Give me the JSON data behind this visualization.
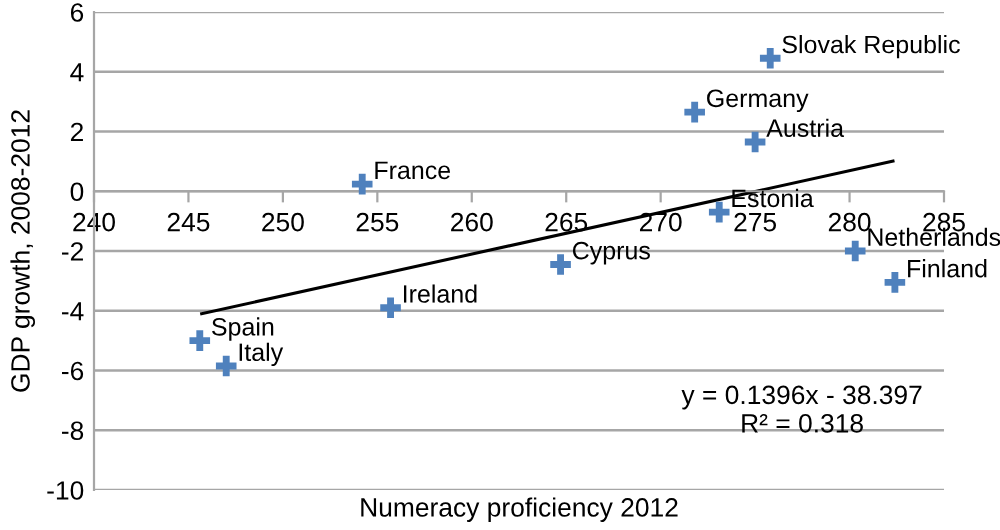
{
  "chart_data": {
    "type": "scatter",
    "xlabel": "Numeracy proficiency 2012",
    "ylabel": "GDP growth, 2008-2012",
    "xlim": [
      240,
      285
    ],
    "xticks": [
      240,
      245,
      250,
      255,
      260,
      265,
      270,
      275,
      280,
      285
    ],
    "ylim": [
      -10,
      6
    ],
    "yticks": [
      -10,
      -8,
      -6,
      -4,
      -2,
      0,
      2,
      4,
      6
    ],
    "grid": "y",
    "legend": false,
    "series": [
      {
        "color": "#4f81bd",
        "marker": "cross",
        "x": [
          245.6,
          247.0,
          254.2,
          255.7,
          264.7,
          271.8,
          275.0,
          273.1,
          275.8,
          280.3,
          282.4
        ],
        "values": [
          -5.0,
          -5.85,
          0.24,
          -3.9,
          -2.45,
          2.65,
          1.65,
          -0.7,
          4.45,
          -2.0,
          -3.05
        ]
      },
      {
        "type": "line",
        "color": "#000000",
        "marker": "none",
        "line_style": "solid",
        "x": [
          245.7,
          282.3
        ],
        "values": [
          -4.1,
          1.01
        ]
      }
    ],
    "annotations": [
      {
        "text": "Spain",
        "x": 245.6,
        "y": -5.0
      },
      {
        "text": "Italy",
        "x": 247.0,
        "y": -5.85
      },
      {
        "text": "France",
        "x": 254.2,
        "y": 0.24
      },
      {
        "text": "Ireland",
        "x": 255.7,
        "y": -3.9
      },
      {
        "text": "Cyprus",
        "x": 264.7,
        "y": -2.45
      },
      {
        "text": "Germany",
        "x": 271.8,
        "y": 2.65
      },
      {
        "text": "Austria",
        "x": 275.0,
        "y": 1.65
      },
      {
        "text": "Estonia",
        "x": 273.1,
        "y": -0.7
      },
      {
        "text": "Slovak Republic",
        "x": 275.8,
        "y": 4.45
      },
      {
        "text": "Netherlands",
        "x": 280.3,
        "y": -2.0
      },
      {
        "text": "Finland",
        "x": 282.4,
        "y": -3.05
      },
      "y = 0.1396x - 38.397\nR² = 0.318"
    ]
  }
}
